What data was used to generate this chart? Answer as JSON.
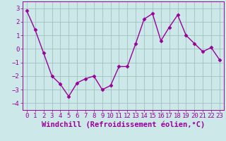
{
  "x": [
    0,
    1,
    2,
    3,
    4,
    5,
    6,
    7,
    8,
    9,
    10,
    11,
    12,
    13,
    14,
    15,
    16,
    17,
    18,
    19,
    20,
    21,
    22,
    23
  ],
  "y": [
    2.8,
    1.4,
    -0.3,
    -2.0,
    -2.6,
    -3.5,
    -2.5,
    -2.2,
    -2.0,
    -3.0,
    -2.7,
    -1.3,
    -1.3,
    0.4,
    2.2,
    2.6,
    0.6,
    1.6,
    2.5,
    1.0,
    0.4,
    -0.2,
    0.1,
    -0.8
  ],
  "line_color": "#990099",
  "marker": "D",
  "marker_size": 2.5,
  "background_color": "#cce8e8",
  "grid_color": "#99bbbb",
  "xlabel": "Windchill (Refroidissement éolien,°C)",
  "xlabel_fontsize": 7.5,
  "ylim": [
    -4.5,
    3.5
  ],
  "yticks": [
    -4,
    -3,
    -2,
    -1,
    0,
    1,
    2,
    3
  ],
  "xlim": [
    -0.5,
    23.5
  ],
  "xticks": [
    0,
    1,
    2,
    3,
    4,
    5,
    6,
    7,
    8,
    9,
    10,
    11,
    12,
    13,
    14,
    15,
    16,
    17,
    18,
    19,
    20,
    21,
    22,
    23
  ],
  "tick_fontsize": 6.5,
  "line_width": 1.0
}
